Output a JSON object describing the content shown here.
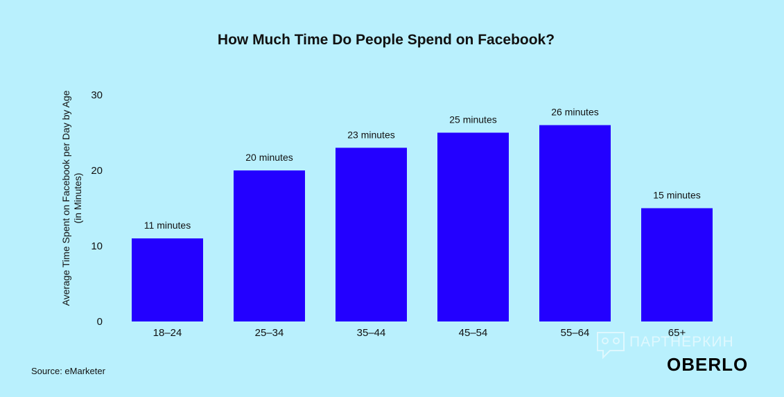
{
  "chart_data": {
    "type": "bar",
    "title": "How Much Time Do People Spend on Facebook?",
    "ylabel_lines": [
      "Average Time Spent on Facebook per Day by Age",
      "(in Minutes)"
    ],
    "xlabel": "",
    "categories": [
      "18–24",
      "25–34",
      "35–44",
      "45–54",
      "55–64",
      "65+"
    ],
    "values": [
      11,
      20,
      23,
      25,
      26,
      15
    ],
    "data_labels": [
      "11 minutes",
      "20 minutes",
      "23 minutes",
      "25 minutes",
      "26 minutes",
      "15 minutes"
    ],
    "ylim": [
      0,
      30
    ],
    "yticks": [
      0,
      10,
      20,
      30
    ],
    "grid": false,
    "bar_color": "#2300ff"
  },
  "source": "Source: eMarketer",
  "brand": "OBERLO",
  "watermark": "ПАРТНЕРКИН",
  "colors": {
    "background": "#b9f0fd",
    "bar": "#2300ff"
  }
}
